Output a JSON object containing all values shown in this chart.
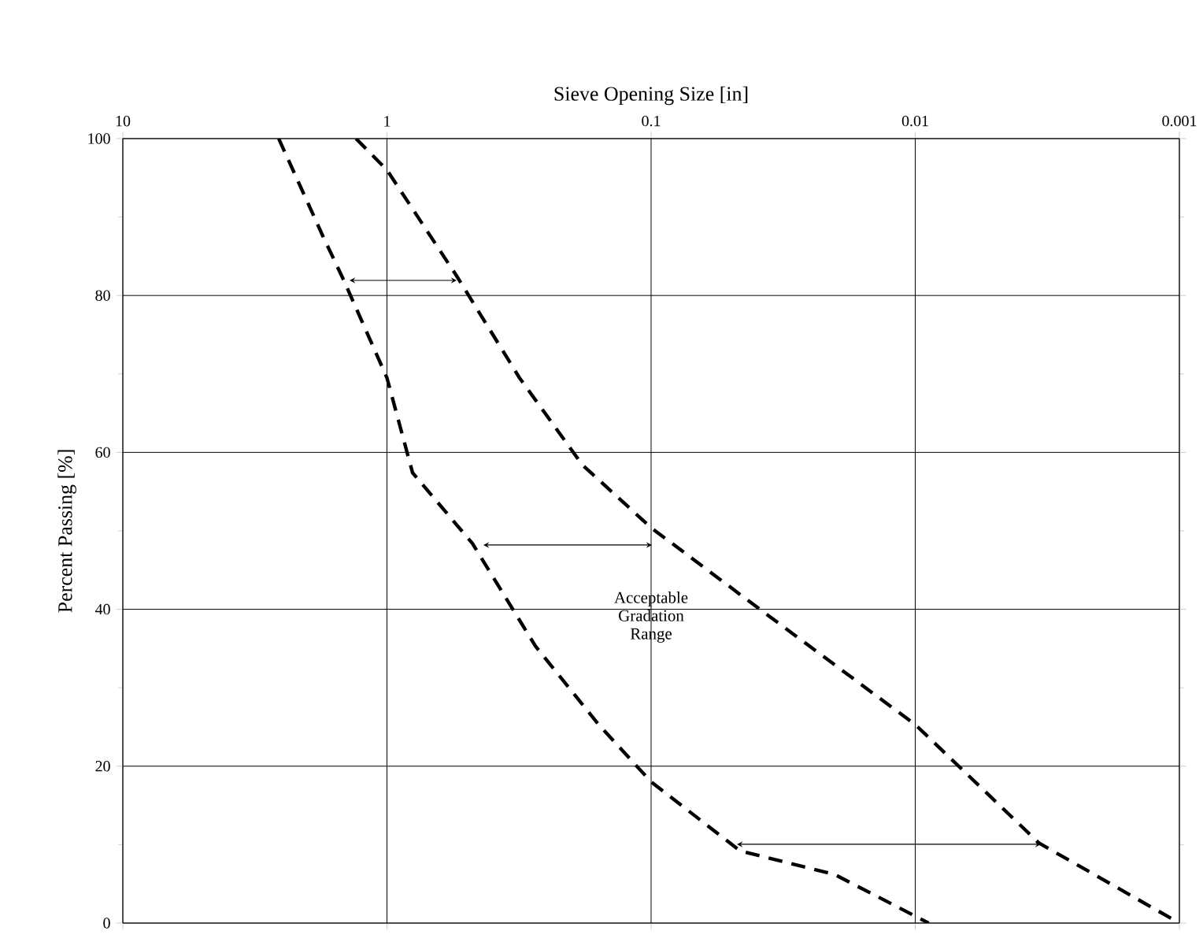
{
  "chart_data": {
    "type": "line",
    "xlabel": "Sieve Opening Size [in]",
    "ylabel": "Percent Passing [%]",
    "log": "x",
    "xlim": [
      10,
      0.001
    ],
    "xticks": [
      10,
      1,
      0.1,
      0.01,
      0.001
    ],
    "ylim": [
      0,
      100
    ],
    "yticks": [
      0,
      20,
      40,
      60,
      80,
      100
    ],
    "grid": true,
    "series": [
      {
        "color": "#000000",
        "line_style": "dashed",
        "x": [
          2.57,
          1.75,
          1.46,
          1.0,
          0.8,
          0.475,
          0.274,
          0.158,
          0.1,
          0.046,
          0.0202,
          0.0089
        ],
        "values": [
          100,
          87.6,
          82,
          69.5,
          57.4,
          48.4,
          35.3,
          25.3,
          18,
          9.2,
          6.2,
          0
        ]
      },
      {
        "color": "#000000",
        "line_style": "dashed",
        "x": [
          1.31,
          1.0,
          0.545,
          0.315,
          0.182,
          0.1,
          0.0402,
          0.01,
          0.0034,
          0.001
        ],
        "values": [
          100,
          96,
          82.5,
          69.5,
          58.4,
          50.4,
          40.4,
          25.3,
          10.2,
          0
        ]
      }
    ],
    "annotations": [
      "Acceptable Gradation Range"
    ]
  }
}
